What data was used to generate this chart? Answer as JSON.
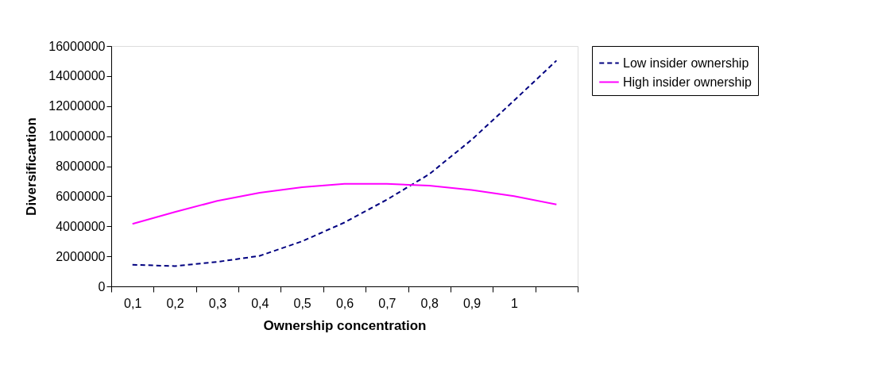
{
  "chart_data": {
    "type": "line",
    "xlabel": "Ownership concentration",
    "ylabel": "Diversificartion",
    "categories": [
      "0,1",
      "0,2",
      "0,3",
      "0,4",
      "0,5",
      "0,6",
      "0,7",
      "0,8",
      "0,9",
      "1",
      null
    ],
    "series": [
      {
        "name": "Low insider ownership",
        "color": "#000080",
        "line_style": "dashed",
        "values": [
          1440000,
          1350000,
          1630000,
          2030000,
          3000000,
          4250000,
          5770000,
          7470000,
          9760000,
          12370000,
          15030000
        ]
      },
      {
        "name": "High insider ownership",
        "color": "#ff00ff",
        "line_style": "solid",
        "values": [
          4160000,
          4950000,
          5690000,
          6230000,
          6600000,
          6820000,
          6820000,
          6710000,
          6410000,
          6010000,
          5450000
        ]
      }
    ],
    "ylim": [
      0,
      16000000
    ],
    "yticks": [
      0,
      2000000,
      4000000,
      6000000,
      8000000,
      10000000,
      12000000,
      14000000,
      16000000
    ],
    "grid": false,
    "legend": "right",
    "marker": "none"
  }
}
